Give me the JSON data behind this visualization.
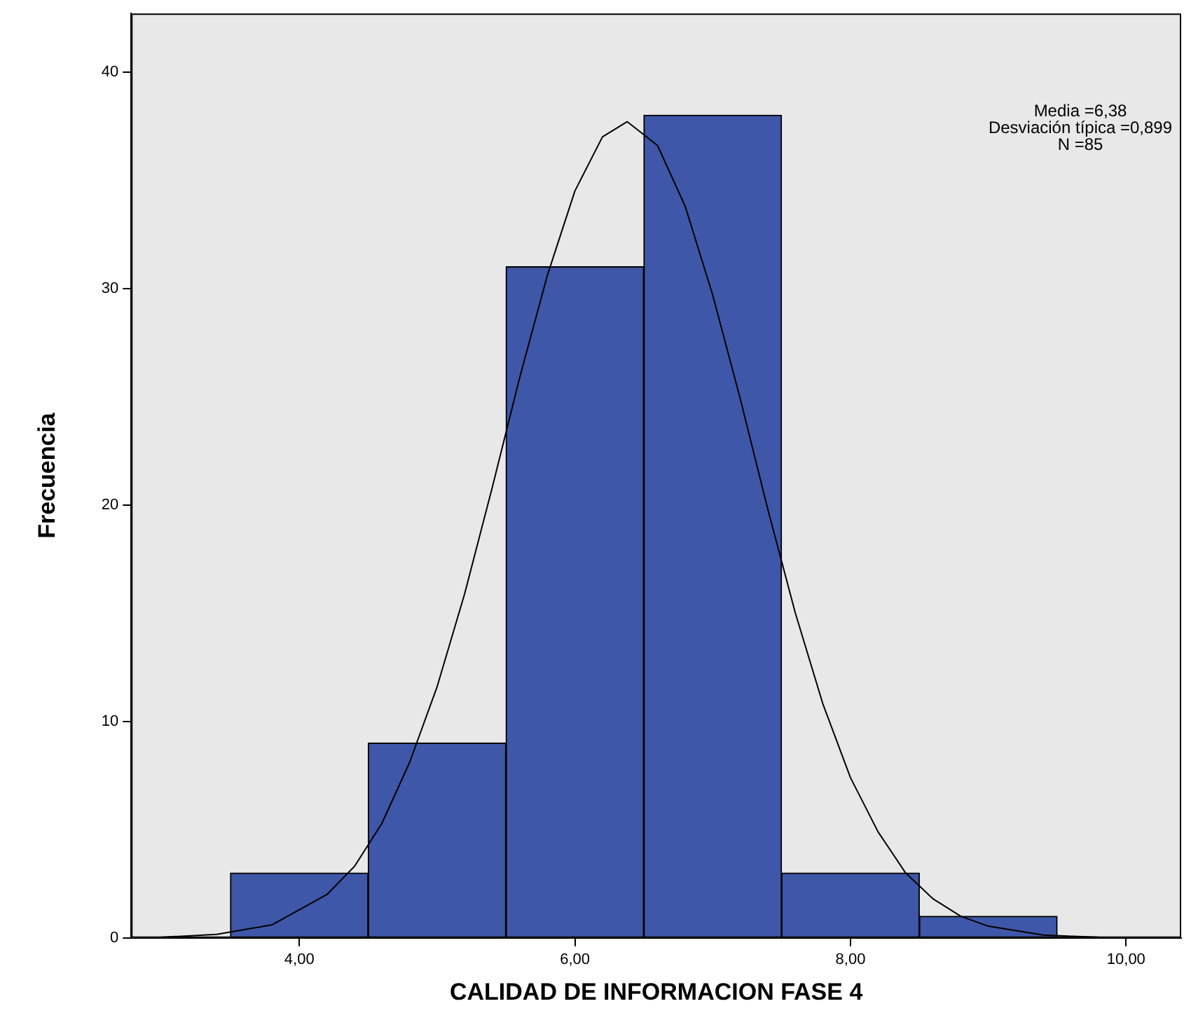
{
  "chart_data": {
    "type": "histogram",
    "xlabel": "CALIDAD DE INFORMACION FASE 4",
    "ylabel": "Frecuencia",
    "bins": [
      3.5,
      4.5,
      5.5,
      6.5,
      7.5,
      8.5,
      9.5
    ],
    "values": [
      3,
      9,
      31,
      38,
      3,
      1
    ],
    "color": "#3f57a8",
    "series": [
      {
        "type": "line",
        "color": "#000000",
        "x": [
          3.0,
          3.4,
          3.8,
          4.2,
          4.4,
          4.6,
          4.8,
          5.0,
          5.2,
          5.4,
          5.6,
          5.8,
          6.0,
          6.2,
          6.38,
          6.6,
          6.8,
          7.0,
          7.2,
          7.4,
          7.6,
          7.8,
          8.0,
          8.2,
          8.4,
          8.6,
          8.8,
          9.0,
          9.4,
          9.8
        ],
        "values": [
          0.03,
          0.16,
          0.6,
          2.0,
          3.3,
          5.3,
          8.1,
          11.6,
          15.9,
          20.8,
          25.9,
          30.6,
          34.5,
          37.0,
          37.7,
          36.6,
          33.8,
          29.7,
          24.9,
          19.8,
          15.0,
          10.8,
          7.4,
          4.9,
          3.0,
          1.8,
          1.0,
          0.54,
          0.13,
          0.03
        ]
      }
    ],
    "xlim": [
      2.78,
      10.4
    ],
    "xticks": [
      {
        "value": 4,
        "label": "4,00"
      },
      {
        "value": 6,
        "label": "6,00"
      },
      {
        "value": 8,
        "label": "8,00"
      },
      {
        "value": 10,
        "label": "10,00"
      }
    ],
    "ylim": [
      0,
      42.7
    ],
    "yticks": [
      0,
      10,
      20,
      30,
      40
    ],
    "annotations": [
      "Media =6,38",
      "Desviación típica =0,899",
      "N =85"
    ],
    "grid": false,
    "legend": false
  }
}
